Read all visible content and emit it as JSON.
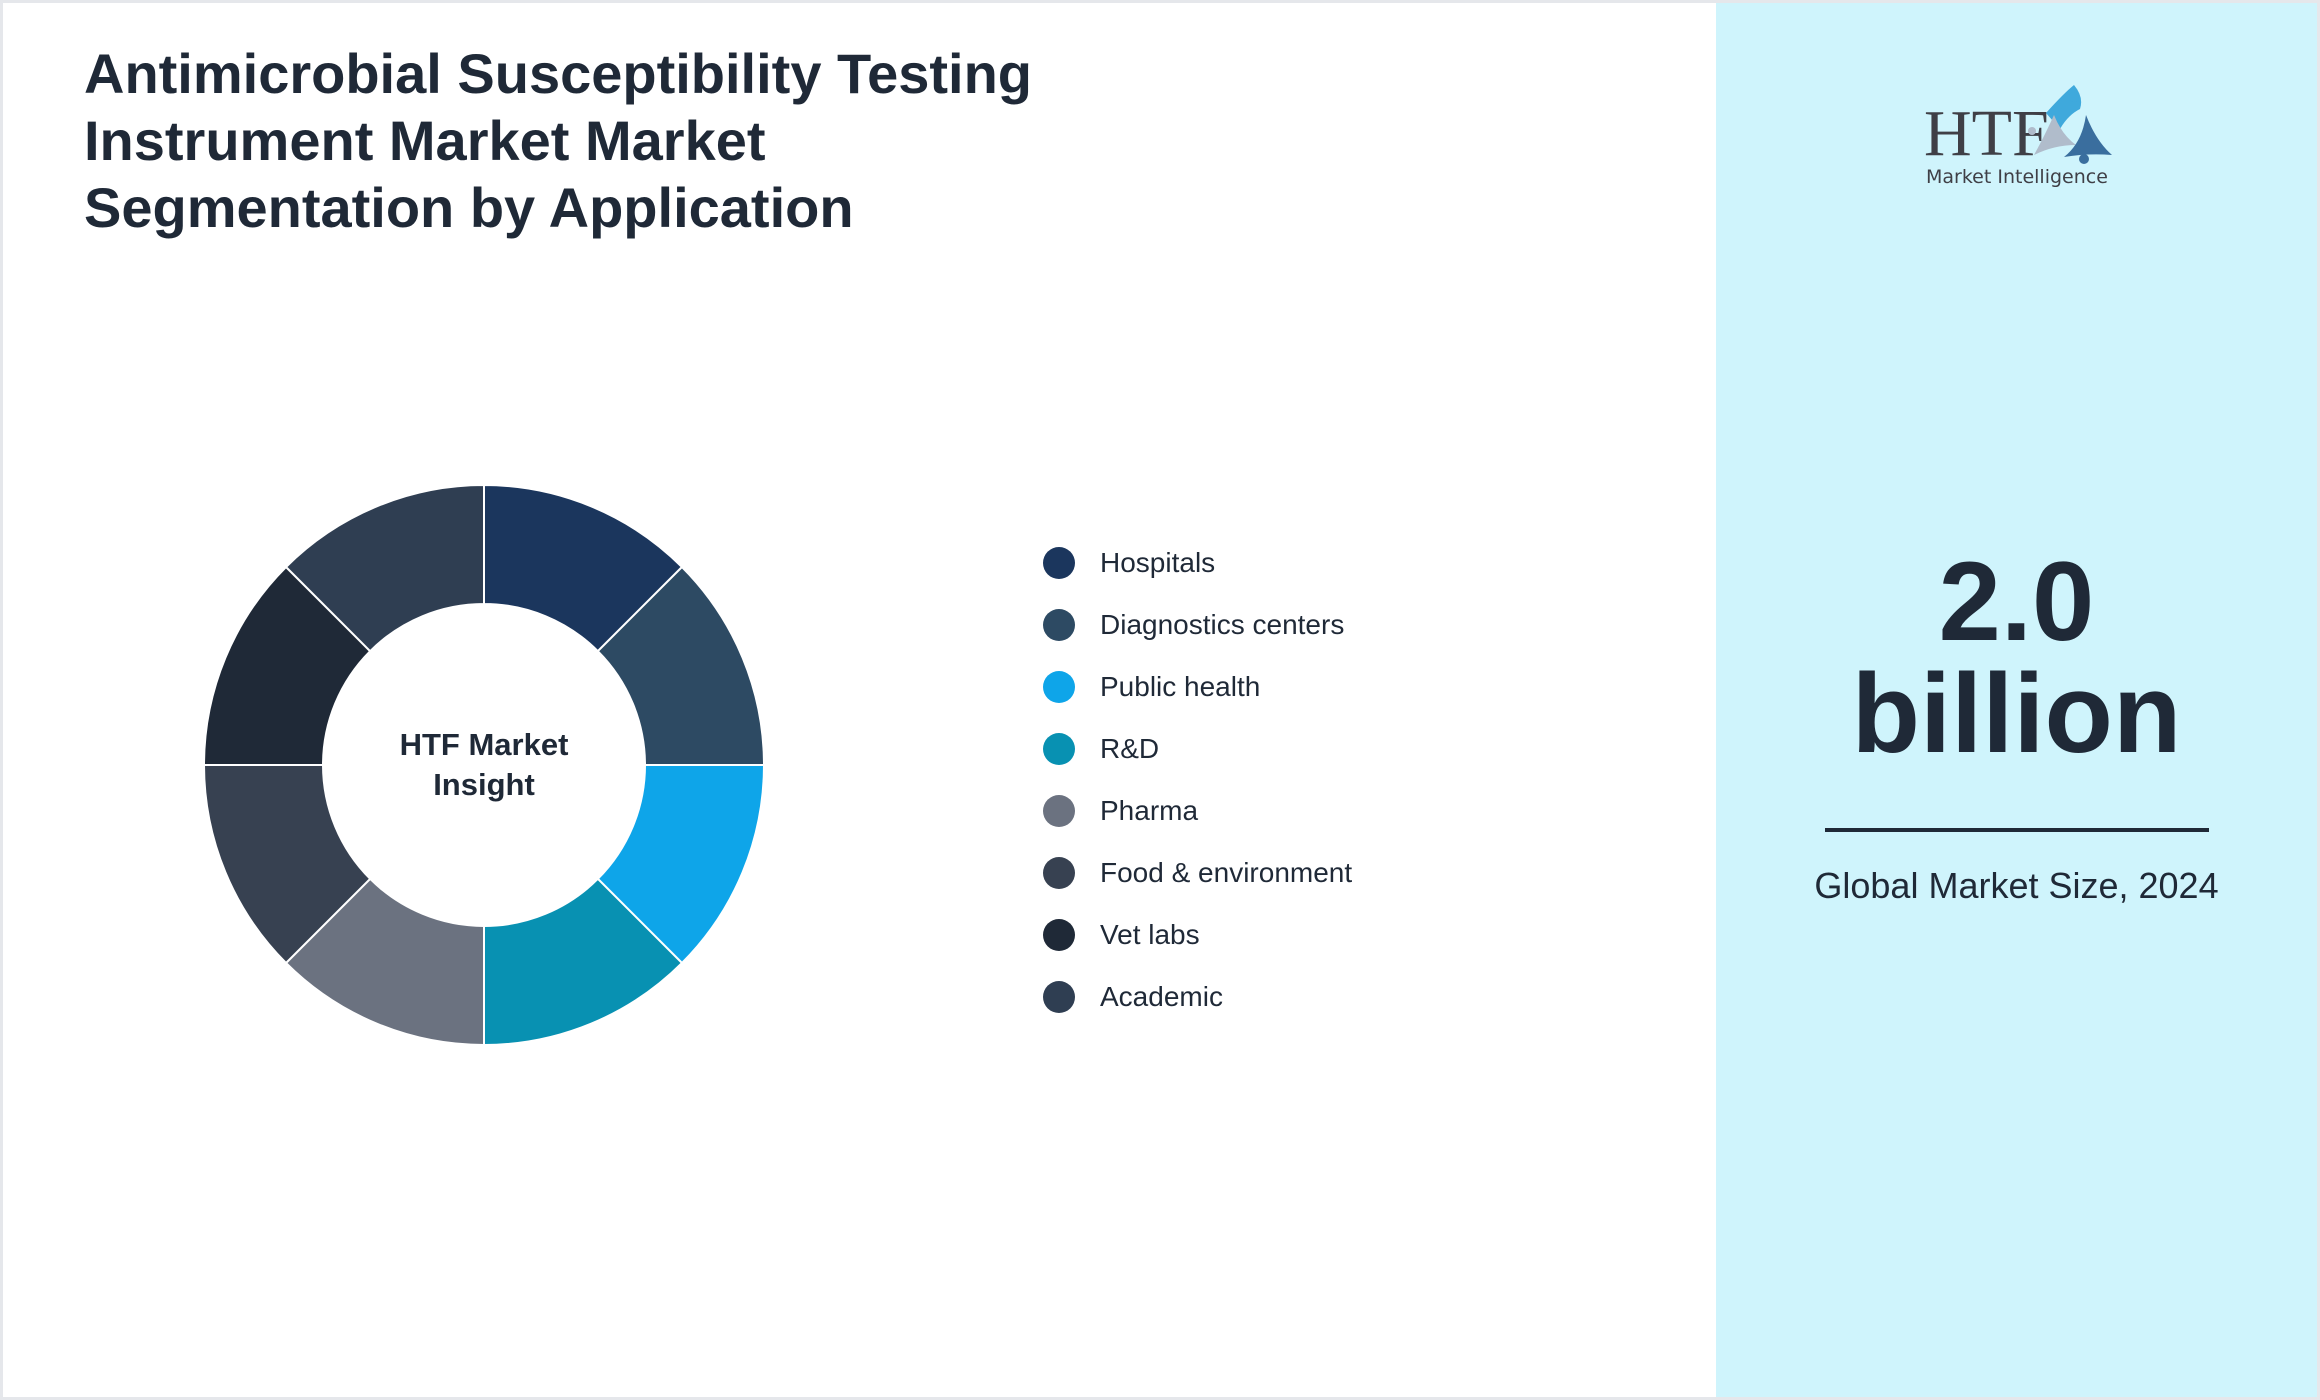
{
  "title": "Antimicrobial Susceptibility Testing Instrument Market Market Segmentation by Application",
  "chart_data": {
    "type": "pie",
    "variant": "donut",
    "center_label": "HTF Market Insight",
    "categories": [
      "Hospitals",
      "Diagnostics centers",
      "Public health",
      "R&D",
      "Pharma",
      "Food & environment",
      "Vet labs",
      "Academic"
    ],
    "values": [
      12.5,
      12.5,
      12.5,
      12.5,
      12.5,
      12.5,
      12.5,
      12.5
    ],
    "colors": [
      "#1b365d",
      "#2d4a63",
      "#0ea5e9",
      "#0891b2",
      "#6b7280",
      "#374151",
      "#1f2937",
      "#2f3e52"
    ],
    "legend_position": "right"
  },
  "panel": {
    "value_line1": "2.0",
    "value_line2": "billion",
    "caption": "Global Market Size, 2024",
    "logo_text": "HTF Market Intelligence",
    "background": "#cff4fc"
  }
}
